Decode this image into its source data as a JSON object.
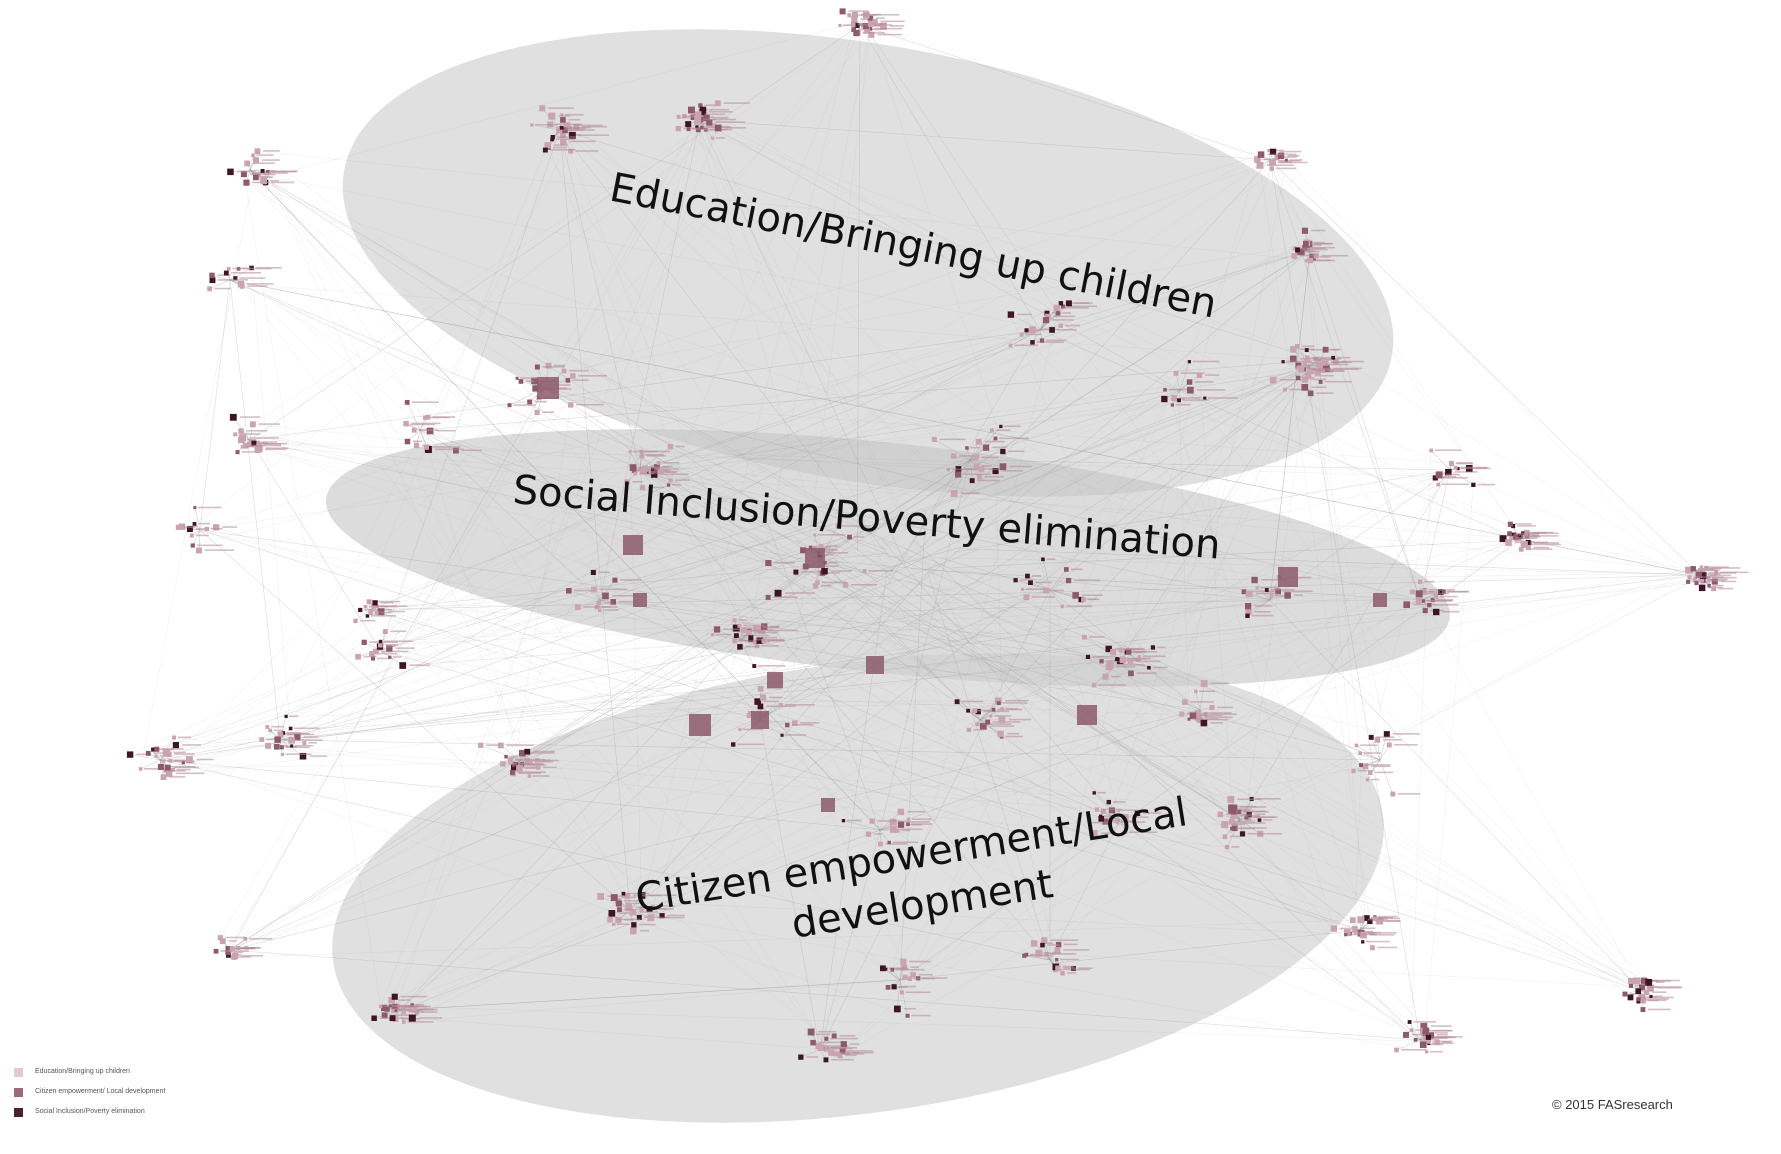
{
  "clusters": [
    {
      "label_lines": [
        "Education/Bringing up children"
      ]
    },
    {
      "label_lines": [
        "Social Inclusion/Poverty elimination"
      ]
    },
    {
      "label_lines": [
        "Citizen empowerment/Local",
        "development"
      ]
    }
  ],
  "legend": {
    "items": [
      {
        "label": "Education/Bringing up children",
        "color": "#e3c9d1"
      },
      {
        "label": "Citizen empowerment/ Local development",
        "color": "#9a6a7c"
      },
      {
        "label": "Social Inclusion/Poverty elimination",
        "color": "#4a1f2e"
      }
    ]
  },
  "colors": {
    "cluster_fill": "#cfcfcf",
    "edge": "#9a9a9a",
    "node_light": "#c9a3b1",
    "node_mid": "#8c5a6c",
    "node_dark": "#3e1525"
  },
  "copyright": "© 2015 FASresearch"
}
